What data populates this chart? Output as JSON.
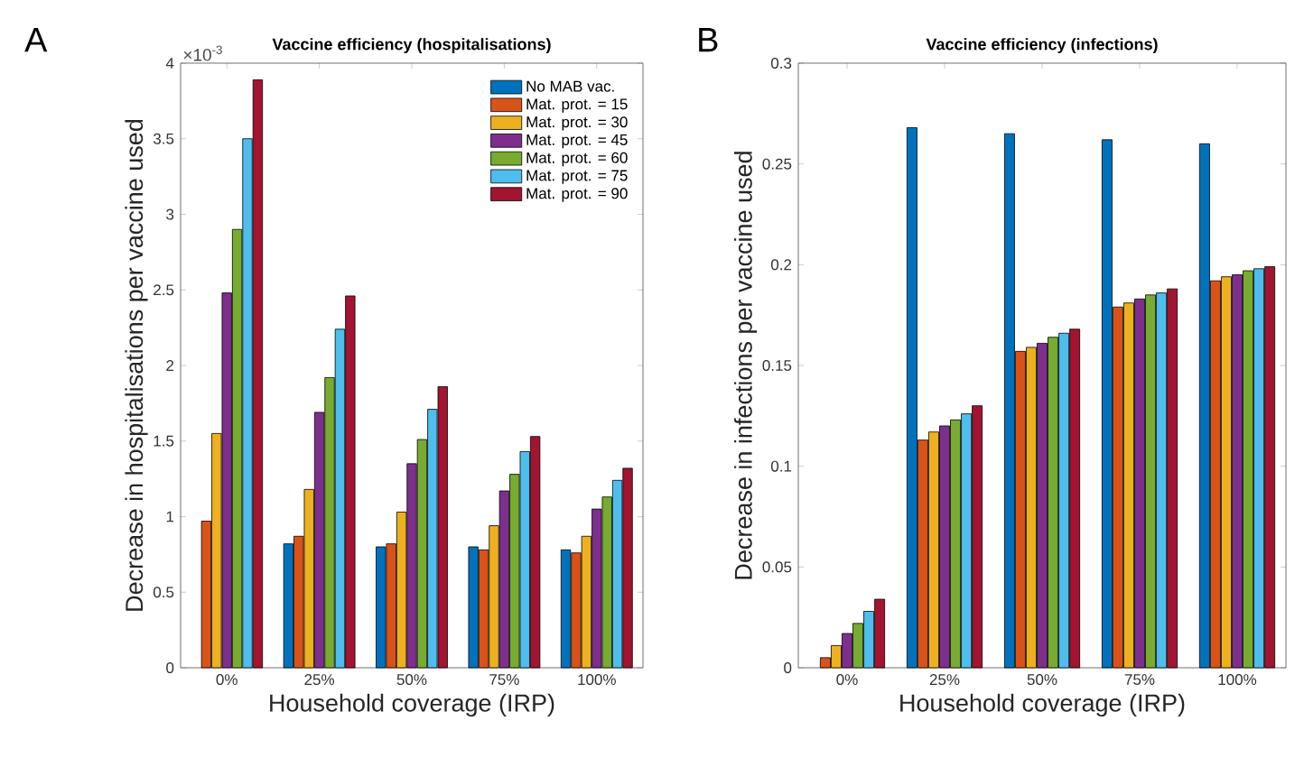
{
  "chart_data": [
    {
      "type": "bar",
      "title": "Vaccine efficiency (hospitalisations)",
      "xlabel": "Household coverage (IRP)",
      "ylabel": "Decrease in hospitalisations per vaccine used",
      "categories": [
        "0%",
        "25%",
        "50%",
        "75%",
        "100%"
      ],
      "ylim": [
        0,
        4
      ],
      "yticks": [
        0,
        0.5,
        1,
        1.5,
        2,
        2.5,
        3,
        3.5,
        4
      ],
      "grid": false,
      "legend": "top right",
      "annotations": [
        "A",
        "×10$^{-3}$"
      ],
      "series": [
        {
          "name": "No MAB vac.",
          "color": "#0072bd",
          "values": [
            null,
            0.82,
            0.8,
            0.8,
            0.78
          ]
        },
        {
          "name": "Mat. prot. = 15",
          "color": "#d95319",
          "values": [
            0.97,
            0.87,
            0.82,
            0.78,
            0.76
          ]
        },
        {
          "name": "Mat. prot. = 30",
          "color": "#edb120",
          "values": [
            1.55,
            1.18,
            1.03,
            0.94,
            0.87
          ]
        },
        {
          "name": "Mat. prot. = 45",
          "color": "#7e2f8e",
          "values": [
            2.48,
            1.69,
            1.35,
            1.17,
            1.05
          ]
        },
        {
          "name": "Mat. prot. = 60",
          "color": "#77ac30",
          "values": [
            2.9,
            1.92,
            1.51,
            1.28,
            1.13
          ]
        },
        {
          "name": "Mat. prot. = 75",
          "color": "#4dbeee",
          "values": [
            3.5,
            2.24,
            1.71,
            1.43,
            1.24
          ]
        },
        {
          "name": "Mat. prot. = 90",
          "color": "#a2142f",
          "values": [
            3.89,
            2.46,
            1.86,
            1.53,
            1.32
          ]
        }
      ]
    },
    {
      "type": "bar",
      "title": "Vaccine efficiency (infections)",
      "xlabel": "Household coverage (IRP)",
      "ylabel": "Decrease in infections per vaccine used",
      "categories": [
        "0%",
        "25%",
        "50%",
        "75%",
        "100%"
      ],
      "ylim": [
        0,
        0.3
      ],
      "yticks": [
        0,
        0.05,
        0.1,
        0.15,
        0.2,
        0.25,
        0.3
      ],
      "grid": false,
      "legend": false,
      "annotations": [
        "B"
      ],
      "series": [
        {
          "color": "#0072bd",
          "values": [
            null,
            0.268,
            0.265,
            0.262,
            0.26
          ]
        },
        {
          "color": "#d95319",
          "values": [
            0.005,
            0.113,
            0.157,
            0.179,
            0.192
          ]
        },
        {
          "color": "#edb120",
          "values": [
            0.011,
            0.117,
            0.159,
            0.181,
            0.194
          ]
        },
        {
          "color": "#7e2f8e",
          "values": [
            0.017,
            0.12,
            0.161,
            0.183,
            0.195
          ]
        },
        {
          "color": "#77ac30",
          "values": [
            0.022,
            0.123,
            0.164,
            0.185,
            0.197
          ]
        },
        {
          "color": "#4dbeee",
          "values": [
            0.028,
            0.126,
            0.166,
            0.186,
            0.198
          ]
        },
        {
          "color": "#a2142f",
          "values": [
            0.034,
            0.13,
            0.168,
            0.188,
            0.199
          ]
        }
      ]
    }
  ]
}
